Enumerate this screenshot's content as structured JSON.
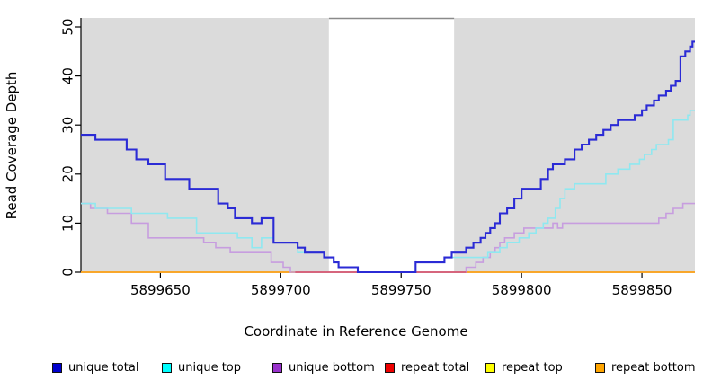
{
  "figure": {
    "background_color": "#FFFFFF",
    "plot_background_color": "#DBDBDB",
    "highlight_background_color": "#FFFFFF",
    "highlight_top_border_color": "#8A8A8A",
    "axis_color": "#000000"
  },
  "chart_data": {
    "type": "line",
    "subtype": "step",
    "title": "",
    "xlabel": "Coordinate in Reference Genome",
    "ylabel": "Read Coverage Depth",
    "xlim": [
      5899617,
      5899872
    ],
    "ylim": [
      0,
      50
    ],
    "x_ticks": [
      5899650,
      5899700,
      5899750,
      5899800,
      5899850
    ],
    "y_ticks": [
      0,
      10,
      20,
      30,
      40,
      50
    ],
    "grid": false,
    "legend_position": "bottom",
    "shaded_regions": [
      {
        "name": "flank-left-gray",
        "x0": 5899617,
        "x1": 5899720,
        "color": "#DBDBDB"
      },
      {
        "name": "repeat-region-white",
        "x0": 5899720,
        "x1": 5899772,
        "color": "#FFFFFF"
      },
      {
        "name": "flank-right-gray",
        "x0": 5899772,
        "x1": 5899872,
        "color": "#DBDBDB"
      }
    ],
    "zero_overlap_tint": {
      "x0": 5899706,
      "x1": 5899777,
      "value": 0,
      "color": "#D4507A"
    },
    "series": [
      {
        "name": "repeat total",
        "line_color": "#E00000",
        "legend_color": "#EE0000",
        "width": 1.4,
        "points": [
          [
            5899617,
            0
          ]
        ]
      },
      {
        "name": "repeat top",
        "line_color": "#FFFF00",
        "legend_color": "#FFFF00",
        "width": 1.4,
        "points": [
          [
            5899617,
            0
          ]
        ]
      },
      {
        "name": "repeat bottom",
        "line_color": "#FFA52C",
        "legend_color": "#FFA500",
        "width": 1.6,
        "points": [
          [
            5899617,
            0
          ]
        ]
      },
      {
        "name": "unique bottom",
        "line_color": "#C79DDF",
        "legend_color": "#9932CC",
        "width": 1.6,
        "points": [
          [
            5899617,
            14
          ],
          [
            5899621,
            13
          ],
          [
            5899628,
            12
          ],
          [
            5899638,
            10
          ],
          [
            5899645,
            7
          ],
          [
            5899668,
            6
          ],
          [
            5899673,
            5
          ],
          [
            5899679,
            4
          ],
          [
            5899696,
            2
          ],
          [
            5899701,
            1
          ],
          [
            5899704,
            0
          ],
          [
            5899777,
            1
          ],
          [
            5899781,
            2
          ],
          [
            5899784,
            3
          ],
          [
            5899787,
            4
          ],
          [
            5899789,
            5
          ],
          [
            5899791,
            6
          ],
          [
            5899793,
            7
          ],
          [
            5899797,
            8
          ],
          [
            5899801,
            9
          ],
          [
            5899813,
            10
          ],
          [
            5899815,
            9
          ],
          [
            5899817,
            10
          ],
          [
            5899851,
            10
          ],
          [
            5899857,
            11
          ],
          [
            5899860,
            12
          ],
          [
            5899863,
            13
          ],
          [
            5899867,
            14
          ]
        ]
      },
      {
        "name": "unique top",
        "line_color": "#8FE8F0",
        "legend_color": "#00FFFF",
        "width": 1.6,
        "points": [
          [
            5899617,
            14
          ],
          [
            5899623,
            13
          ],
          [
            5899638,
            12
          ],
          [
            5899653,
            11
          ],
          [
            5899665,
            8
          ],
          [
            5899682,
            7
          ],
          [
            5899688,
            5
          ],
          [
            5899692,
            7
          ],
          [
            5899697,
            6
          ],
          [
            5899707,
            4
          ],
          [
            5899718,
            3
          ],
          [
            5899722,
            2
          ],
          [
            5899724,
            1
          ],
          [
            5899732,
            0
          ],
          [
            5899756,
            2
          ],
          [
            5899768,
            3
          ],
          [
            5899786,
            4
          ],
          [
            5899791,
            5
          ],
          [
            5899794,
            6
          ],
          [
            5899799,
            7
          ],
          [
            5899803,
            8
          ],
          [
            5899806,
            9
          ],
          [
            5899809,
            10
          ],
          [
            5899811,
            11
          ],
          [
            5899814,
            13
          ],
          [
            5899816,
            15
          ],
          [
            5899818,
            17
          ],
          [
            5899822,
            18
          ],
          [
            5899835,
            20
          ],
          [
            5899840,
            21
          ],
          [
            5899845,
            22
          ],
          [
            5899849,
            23
          ],
          [
            5899851,
            24
          ],
          [
            5899854,
            25
          ],
          [
            5899856,
            26
          ],
          [
            5899861,
            27
          ],
          [
            5899863,
            31
          ],
          [
            5899869,
            32
          ],
          [
            5899870,
            33
          ]
        ]
      },
      {
        "name": "unique total",
        "line_color": "#2B2BD5",
        "legend_color": "#0000CD",
        "width": 2.1,
        "points": [
          [
            5899617,
            28
          ],
          [
            5899623,
            27
          ],
          [
            5899636,
            25
          ],
          [
            5899640,
            23
          ],
          [
            5899645,
            22
          ],
          [
            5899652,
            19
          ],
          [
            5899662,
            17
          ],
          [
            5899674,
            14
          ],
          [
            5899678,
            13
          ],
          [
            5899681,
            11
          ],
          [
            5899688,
            10
          ],
          [
            5899692,
            11
          ],
          [
            5899697,
            6
          ],
          [
            5899707,
            5
          ],
          [
            5899710,
            4
          ],
          [
            5899718,
            3
          ],
          [
            5899722,
            2
          ],
          [
            5899724,
            1
          ],
          [
            5899732,
            0
          ],
          [
            5899756,
            2
          ],
          [
            5899768,
            3
          ],
          [
            5899771,
            4
          ],
          [
            5899777,
            5
          ],
          [
            5899780,
            6
          ],
          [
            5899783,
            7
          ],
          [
            5899785,
            8
          ],
          [
            5899787,
            9
          ],
          [
            5899789,
            10
          ],
          [
            5899791,
            12
          ],
          [
            5899794,
            13
          ],
          [
            5899797,
            15
          ],
          [
            5899800,
            17
          ],
          [
            5899808,
            19
          ],
          [
            5899811,
            21
          ],
          [
            5899813,
            22
          ],
          [
            5899818,
            23
          ],
          [
            5899822,
            25
          ],
          [
            5899825,
            26
          ],
          [
            5899828,
            27
          ],
          [
            5899831,
            28
          ],
          [
            5899834,
            29
          ],
          [
            5899837,
            30
          ],
          [
            5899840,
            31
          ],
          [
            5899847,
            32
          ],
          [
            5899850,
            33
          ],
          [
            5899852,
            34
          ],
          [
            5899855,
            35
          ],
          [
            5899857,
            36
          ],
          [
            5899860,
            37
          ],
          [
            5899862,
            38
          ],
          [
            5899864,
            39
          ],
          [
            5899866,
            44
          ],
          [
            5899868,
            45
          ],
          [
            5899870,
            46
          ],
          [
            5899871,
            47
          ]
        ]
      }
    ]
  },
  "legend": {
    "items": [
      {
        "label": "unique total",
        "color": "#0000CD"
      },
      {
        "label": "unique top",
        "color": "#00FFFF"
      },
      {
        "label": "unique bottom",
        "color": "#9932CC"
      },
      {
        "label": "repeat total",
        "color": "#EE0000"
      },
      {
        "label": "repeat top",
        "color": "#FFFF00"
      },
      {
        "label": "repeat bottom",
        "color": "#FFA500"
      }
    ]
  }
}
